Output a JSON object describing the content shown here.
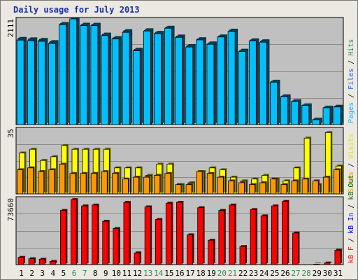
{
  "title": "Daily usage for July 2013",
  "chart_data": [
    {
      "type": "bar",
      "categories": [
        "1",
        "2",
        "3",
        "4",
        "5",
        "6",
        "7",
        "8",
        "9",
        "10",
        "11",
        "12",
        "13",
        "14",
        "15",
        "16",
        "17",
        "18",
        "19",
        "20",
        "21",
        "22",
        "23",
        "24",
        "25",
        "26",
        "27",
        "28",
        "29",
        "30",
        "31"
      ],
      "ylim": [
        0,
        2111
      ],
      "ymax_label": "2111",
      "series": [
        {
          "name": "Pages",
          "color": "#00c0ff",
          "values": [
            1688,
            1676,
            1664,
            1620,
            1994,
            2111,
            1976,
            1976,
            1778,
            1710,
            1843,
            1474,
            1869,
            1815,
            1926,
            1743,
            1550,
            1692,
            1605,
            1750,
            1860,
            1460,
            1670,
            1647,
            847,
            560,
            461,
            383,
            98,
            336,
            352
          ]
        },
        {
          "name": "Files",
          "color": "#00c0ff",
          "values": [
            1710,
            1696,
            1682,
            1640,
            2010,
            2111,
            1990,
            1990,
            1795,
            1722,
            1860,
            1490,
            1880,
            1828,
            1936,
            1755,
            1565,
            1702,
            1618,
            1760,
            1870,
            1472,
            1680,
            1662,
            858,
            568,
            470,
            390,
            105,
            342,
            360
          ]
        },
        {
          "name": "Hits",
          "color": "#1a7a7a",
          "values": [
            1723,
            1714,
            1702,
            1658,
            2021,
            2111,
            2006,
            2005,
            1809,
            1737,
            1877,
            1505,
            1896,
            1843,
            1946,
            1770,
            1580,
            1717,
            1632,
            1772,
            1887,
            1487,
            1694,
            1675,
            868,
            576,
            478,
            396,
            110,
            350,
            368
          ]
        }
      ]
    },
    {
      "type": "bar",
      "categories": [
        "1",
        "2",
        "3",
        "4",
        "5",
        "6",
        "7",
        "8",
        "9",
        "10",
        "11",
        "12",
        "13",
        "14",
        "15",
        "16",
        "17",
        "18",
        "19",
        "20",
        "21",
        "22",
        "23",
        "24",
        "25",
        "26",
        "27",
        "28",
        "29",
        "30",
        "31"
      ],
      "ylim": [
        0,
        35
      ],
      "ymax_label": "35",
      "series": [
        {
          "name": "Visits",
          "color": "#ffff00",
          "values": [
            22,
            24,
            18,
            20,
            26,
            24,
            24,
            24,
            24,
            14,
            14,
            14,
            10,
            16,
            16,
            5,
            6,
            12,
            14,
            13,
            9,
            7,
            8,
            10,
            8,
            7,
            14,
            30,
            5,
            33,
            15
          ]
        },
        {
          "name": "Sites",
          "color": "#ff9900",
          "values": [
            13,
            14,
            12,
            13,
            16,
            11,
            11,
            11,
            12,
            11,
            8,
            9,
            9,
            10,
            11,
            5,
            5,
            12,
            11,
            9,
            7,
            6,
            5,
            6,
            8,
            5,
            7,
            8,
            7,
            9,
            13
          ]
        }
      ]
    },
    {
      "type": "bar",
      "categories": [
        "1",
        "2",
        "3",
        "4",
        "5",
        "6",
        "7",
        "8",
        "9",
        "10",
        "11",
        "12",
        "13",
        "14",
        "15",
        "16",
        "17",
        "18",
        "19",
        "20",
        "21",
        "22",
        "23",
        "24",
        "25",
        "26",
        "27",
        "28",
        "29",
        "30",
        "31"
      ],
      "ylim": [
        0,
        73660
      ],
      "ymax_label": "73660",
      "series": [
        {
          "name": "kB Out",
          "color": "#006800",
          "values": [
            0,
            0,
            0,
            0,
            0,
            0,
            0,
            0,
            0,
            0,
            0,
            0,
            0,
            0,
            0,
            0,
            0,
            0,
            0,
            0,
            0,
            0,
            0,
            0,
            0,
            0,
            0,
            0,
            0,
            0,
            0
          ]
        },
        {
          "name": "kB In",
          "color": "#0000ff",
          "values": [
            0,
            0,
            0,
            0,
            0,
            0,
            0,
            0,
            0,
            0,
            0,
            0,
            0,
            0,
            0,
            0,
            0,
            0,
            0,
            0,
            0,
            0,
            0,
            0,
            0,
            0,
            0,
            0,
            0,
            0,
            0
          ]
        },
        {
          "name": "kB F",
          "color": "#ff0000",
          "values": [
            8000,
            6500,
            6000,
            3500,
            60000,
            72000,
            65000,
            66000,
            48000,
            40000,
            69000,
            13000,
            64000,
            50000,
            68000,
            69000,
            33000,
            63000,
            27000,
            60000,
            66000,
            20000,
            61000,
            54000,
            65000,
            70000,
            35000,
            0,
            500,
            1800,
            16000
          ]
        }
      ]
    }
  ],
  "legend": {
    "top": [
      {
        "text": "Pages",
        "color": "#00c0ff"
      },
      {
        "text": " / ",
        "color": "#000000"
      },
      {
        "text": "Files",
        "color": "#1060ff"
      },
      {
        "text": " / ",
        "color": "#000000"
      },
      {
        "text": "Hits",
        "color": "#2e8b57"
      }
    ],
    "middle": [
      {
        "text": "Sites",
        "color": "#ff9900"
      },
      {
        "text": " / ",
        "color": "#000000"
      },
      {
        "text": "Visits",
        "color": "#e0e000"
      }
    ],
    "bottom": [
      {
        "text": "kB F",
        "color": "#ff0000"
      },
      {
        "text": " / ",
        "color": "#000000"
      },
      {
        "text": "kB In",
        "color": "#0000ff"
      },
      {
        "text": " / ",
        "color": "#000000"
      },
      {
        "text": "kB Out",
        "color": "#007000"
      }
    ]
  },
  "weekend_days": [
    "6",
    "7",
    "13",
    "14",
    "20",
    "21",
    "27",
    "28"
  ],
  "colors": {
    "weekday_label": "#000000",
    "weekend_label": "#2e8b57",
    "panel_bg": "#c0c0c0",
    "title": "#1a2ea8"
  }
}
